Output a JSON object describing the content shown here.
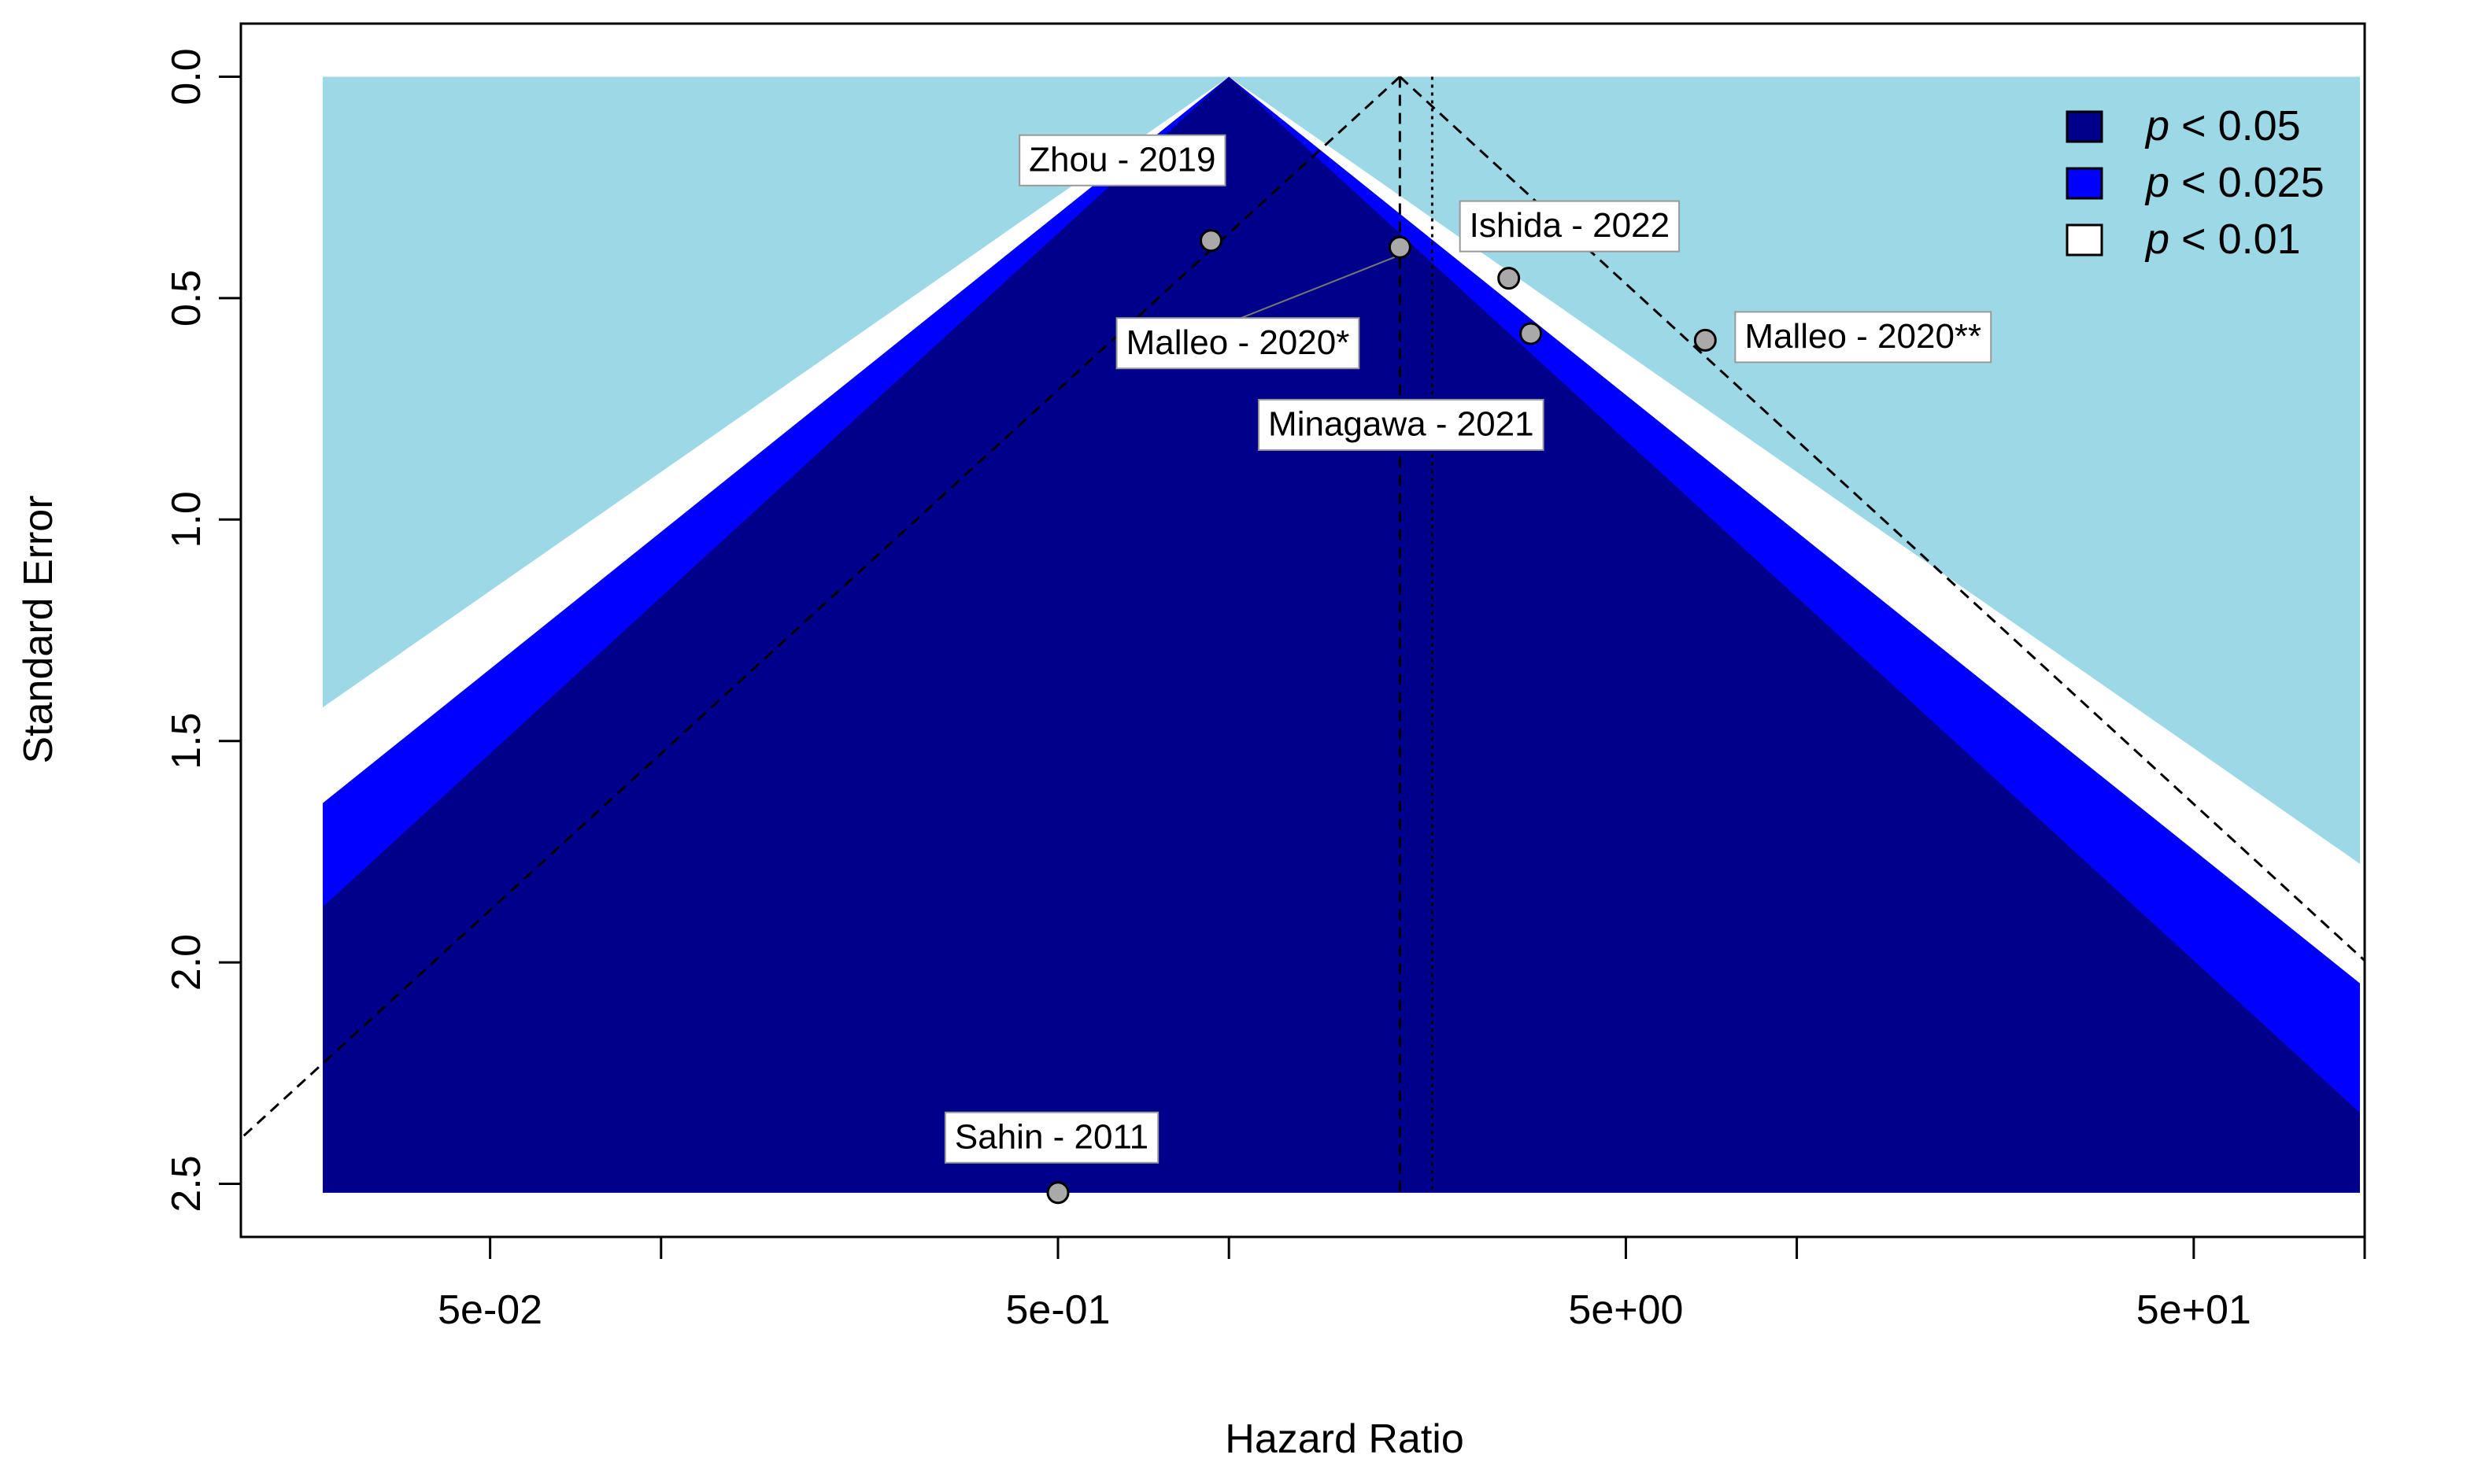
{
  "chart_data": {
    "type": "scatter",
    "subtype": "contour-enhanced funnel plot",
    "title": "",
    "xlabel": "Hazard Ratio",
    "ylabel": "Standard Error",
    "x_scale": "log10",
    "xlim": [
      0.0182,
      100
    ],
    "ylim": [
      2.62,
      -0.12
    ],
    "x_ticks": [
      {
        "value": 0.05,
        "label": "5e-02"
      },
      {
        "value": 0.1,
        "label": ""
      },
      {
        "value": 0.5,
        "label": "5e-01"
      },
      {
        "value": 1,
        "label": ""
      },
      {
        "value": 5,
        "label": "5e+00"
      },
      {
        "value": 10,
        "label": ""
      },
      {
        "value": 50,
        "label": "5e+01"
      },
      {
        "value": 100,
        "label": ""
      }
    ],
    "y_ticks": [
      {
        "value": 0.0,
        "label": "0.0"
      },
      {
        "value": 0.5,
        "label": "0.5"
      },
      {
        "value": 1.0,
        "label": "1.0"
      },
      {
        "value": 1.5,
        "label": "1.5"
      },
      {
        "value": 2.0,
        "label": "2.0"
      },
      {
        "value": 2.5,
        "label": "2.5"
      }
    ],
    "contour_center": 1.0,
    "se_max": 2.52,
    "contours": [
      {
        "label": "p < 0.05",
        "z": 1.96,
        "color": "#00008b"
      },
      {
        "label": "p < 0.025",
        "z": 2.24,
        "color": "#0000ff"
      },
      {
        "label": "p < 0.01",
        "z": 2.58,
        "color": "#ffffff"
      }
    ],
    "background_color": "#9dd8e6",
    "pooled_estimate": 2.0,
    "adjusted_estimate": 2.28,
    "legend_position": "top-right",
    "legend": [
      {
        "italic": "p",
        "text": " < 0.05",
        "color": "#00008b"
      },
      {
        "italic": "p",
        "text": " < 0.025",
        "color": "#0000ff"
      },
      {
        "italic": "p",
        "text": " < 0.01",
        "color": "#ffffff"
      }
    ],
    "points": [
      {
        "label": "Zhou - 2019",
        "hr": 0.93,
        "se": 0.37
      },
      {
        "label": "Malleo - 2020*",
        "hr": 2.0,
        "se": 0.385
      },
      {
        "label": "Ishida - 2022",
        "hr": 3.11,
        "se": 0.455
      },
      {
        "label": "Minagawa - 2021",
        "hr": 3.4,
        "se": 0.58
      },
      {
        "label": "Malleo - 2020**",
        "hr": 6.9,
        "se": 0.595
      },
      {
        "label": "Sahin - 2011",
        "hr": 0.5,
        "se": 2.52
      }
    ]
  }
}
